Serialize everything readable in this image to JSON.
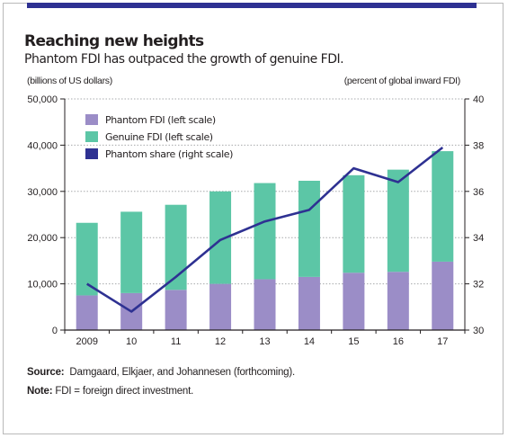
{
  "header": {
    "title": "Reaching new heights",
    "subtitle": "Phantom FDI has outpaced the growth of genuine FDI."
  },
  "axes": {
    "left_unit": "(billions of US dollars)",
    "right_unit": "(percent of global inward FDI)"
  },
  "colors": {
    "phantom": "#9b8dc7",
    "genuine": "#5cc6a6",
    "share_line": "#2e3192",
    "axis": "#231f20",
    "grid": "#a7a9ac"
  },
  "chart_data": {
    "type": "bar",
    "stacked": true,
    "categories": [
      "2009",
      "10",
      "11",
      "12",
      "13",
      "14",
      "15",
      "16",
      "17"
    ],
    "series": [
      {
        "name": "Phantom FDI (left scale)",
        "axis": "left",
        "kind": "bar",
        "values": [
          7500,
          8000,
          8700,
          10000,
          11000,
          11500,
          12400,
          12600,
          14800
        ]
      },
      {
        "name": "Genuine FDI (left scale)",
        "axis": "left",
        "kind": "bar",
        "values": [
          15700,
          17600,
          18400,
          20000,
          20800,
          20800,
          21100,
          22100,
          23900
        ]
      },
      {
        "name": "Phantom share (right scale)",
        "axis": "right",
        "kind": "line",
        "values": [
          32.0,
          30.8,
          32.3,
          33.9,
          34.7,
          35.2,
          37.0,
          36.4,
          37.9
        ]
      }
    ],
    "y_left": {
      "min": 0,
      "max": 50000,
      "ticks": [
        "0",
        "10,000",
        "20,000",
        "30,000",
        "40,000",
        "50,000"
      ]
    },
    "y_right": {
      "min": 30,
      "max": 40,
      "ticks": [
        "30",
        "32",
        "34",
        "36",
        "38",
        "40"
      ]
    },
    "grid": true,
    "legend_position": "top-left"
  },
  "footer": {
    "source_label": "Source:",
    "source_text": "Damgaard, Elkjaer, and Johannesen (forthcoming).",
    "note_label": "Note:",
    "note_text": "FDI = foreign direct investment."
  }
}
